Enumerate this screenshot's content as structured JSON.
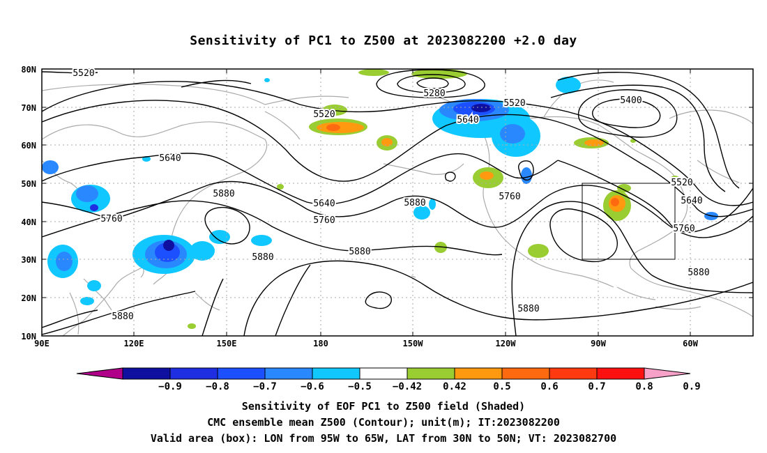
{
  "title": "Sensitivity of PC1 to Z500 at 2023082200 +2.0 day",
  "map": {
    "lat_labels": [
      "80N",
      "70N",
      "60N",
      "50N",
      "40N",
      "30N",
      "20N",
      "10N"
    ],
    "lon_labels": [
      "90E",
      "120E",
      "150E",
      "180",
      "150W",
      "120W",
      "90W",
      "60W"
    ],
    "contour_labels": [
      {
        "text": "5520"
      },
      {
        "text": "5520"
      },
      {
        "text": "5520"
      },
      {
        "text": "5520"
      },
      {
        "text": "5280"
      },
      {
        "text": "5400"
      },
      {
        "text": "5640"
      },
      {
        "text": "5640"
      },
      {
        "text": "5640"
      },
      {
        "text": "5640"
      },
      {
        "text": "5760"
      },
      {
        "text": "5760"
      },
      {
        "text": "5760"
      },
      {
        "text": "5760"
      },
      {
        "text": "5880"
      },
      {
        "text": "5880"
      },
      {
        "text": "5880"
      },
      {
        "text": "5880"
      },
      {
        "text": "5880"
      },
      {
        "text": "5880"
      },
      {
        "text": "5880"
      }
    ],
    "valid_box": {
      "lon_from": "95W",
      "lon_to": "65W",
      "lat_from": "30N",
      "lat_to": "50N"
    }
  },
  "colorbar": {
    "labels": [
      "−0.9",
      "−0.8",
      "−0.7",
      "−0.6",
      "−0.5",
      "−0.42",
      "0.42",
      "0.5",
      "0.6",
      "0.7",
      "0.8",
      "0.9"
    ],
    "colors": [
      "#b0008a",
      "#1010a0",
      "#1f2ee0",
      "#1c50ff",
      "#2a88ff",
      "#10c8ff",
      "#ffffff",
      "#9acd32",
      "#ff9a10",
      "#ff6a10",
      "#ff3a10",
      "#ff1010",
      "#f7a0c8"
    ]
  },
  "captions": {
    "line1": "Sensitivity of EOF PC1 to Z500 field (Shaded)",
    "line2": "CMC ensemble mean Z500 (Contour); unit(m); IT:2023082200",
    "line3": "Valid area (box): LON from 95W to 65W, LAT from 30N to 50N; VT: 2023082700"
  }
}
